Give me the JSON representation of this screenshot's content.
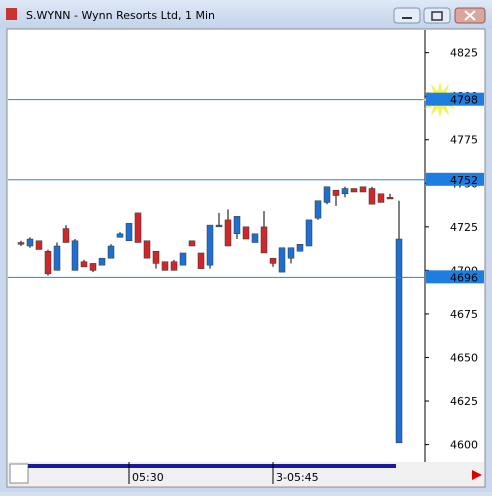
{
  "window_title": "S.WYNN - Wynn Resorts Ltd, 1 Min",
  "chart_data": {
    "type": "candlestick",
    "categories": [
      null,
      null,
      null,
      null,
      null,
      null,
      null,
      null,
      null,
      null,
      null,
      null,
      "05:30",
      null,
      null,
      null,
      null,
      null,
      null,
      null,
      null,
      null,
      null,
      null,
      null,
      null,
      null,
      null,
      "3-05:45",
      null,
      null,
      null,
      null,
      null,
      null,
      null,
      null,
      null,
      null,
      null,
      null,
      null,
      null
    ],
    "open": [
      4716,
      4714,
      4717,
      4711,
      4700,
      4724,
      4700,
      4705,
      4704,
      4703,
      4707,
      4719,
      4717,
      4733,
      4717,
      4711,
      4705,
      4705,
      4703,
      4717,
      4710,
      4703,
      4725,
      4729,
      4721,
      4725,
      4716,
      4725,
      4707,
      4699,
      4707,
      4711,
      4714,
      4730,
      4739,
      4746,
      4744,
      4747,
      4748,
      4747,
      4744,
      4742,
      4601
    ],
    "high": [
      4717,
      4719,
      4717,
      4712,
      4716,
      4726,
      4718,
      4706,
      4704,
      4707,
      4715,
      4722,
      4727,
      4733,
      4717,
      4711,
      4705,
      4706,
      4710,
      4717,
      4710,
      4726,
      4733,
      4735,
      4731,
      4725,
      4721,
      4734,
      4707,
      4713,
      4713,
      4715,
      4729,
      4740,
      4748,
      4746,
      4748,
      4747,
      4748,
      4748,
      4744,
      4744,
      4740
    ],
    "low": [
      4714,
      4713,
      4712,
      4697,
      4700,
      4716,
      4700,
      4702,
      4699,
      4703,
      4707,
      4719,
      4717,
      4716,
      4707,
      4701,
      4700,
      4700,
      4703,
      4714,
      4701,
      4701,
      4725,
      4714,
      4718,
      4718,
      4716,
      4710,
      4702,
      4699,
      4704,
      4711,
      4714,
      4729,
      4738,
      4737,
      4742,
      4745,
      4745,
      4738,
      4739,
      4741,
      4601
    ],
    "close": [
      4715,
      4718,
      4712,
      4698,
      4714,
      4716,
      4717,
      4702,
      4700,
      4707,
      4714,
      4721,
      4727,
      4716,
      4707,
      4704,
      4700,
      4700,
      4710,
      4714,
      4701,
      4726,
      4726,
      4714,
      4731,
      4718,
      4721,
      4710,
      4704,
      4713,
      4713,
      4715,
      4729,
      4740,
      4748,
      4743,
      4747,
      4745,
      4745,
      4738,
      4739,
      4741,
      4718
    ],
    "up_color": "#1e6fd0",
    "down_color": "#d0282a",
    "ylim": [
      4590,
      4838
    ],
    "yticks": [
      4600,
      4625,
      4650,
      4675,
      4700,
      4725,
      4750,
      4775,
      4800,
      4825
    ],
    "price_lines": [
      4798,
      4752,
      4696
    ],
    "price_line_color": "#2a86c8"
  }
}
